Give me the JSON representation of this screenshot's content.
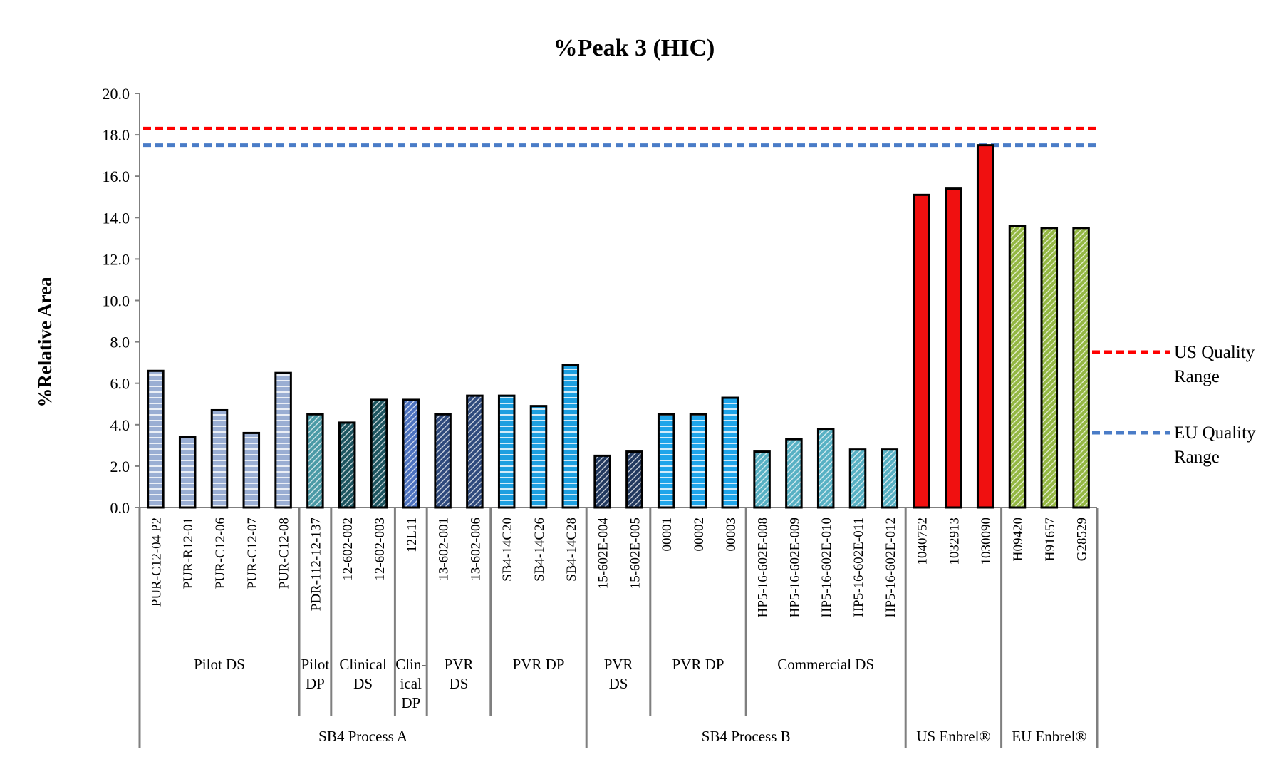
{
  "chart_data": {
    "type": "bar",
    "title": "%Peak 3 (HIC)",
    "ylabel": "%Relative Area",
    "xlabel": "",
    "ylim": [
      0,
      20
    ],
    "ytick_labels": [
      "0.0",
      "2.0",
      "4.0",
      "6.0",
      "8.0",
      "10.0",
      "12.0",
      "14.0",
      "16.0",
      "18.0",
      "20.0"
    ],
    "grid": false,
    "legend_position": "right",
    "categories": [
      "PUR-C12-04 P2",
      "PUR-R12-01",
      "PUR-C12-06",
      "PUR-C12-07",
      "PUR-C12-08",
      "PDR-112-12-137",
      "12-602-002",
      "12-602-003",
      "12L11",
      "13-602-001",
      "13-602-006",
      "SB4-14C20",
      "SB4-14C26",
      "SB4-14C28",
      "15-602E-004",
      "15-602E-005",
      "00001",
      "00002",
      "00003",
      "HP5-16-602E-008",
      "HP5-16-602E-009",
      "HP5-16-602E-010",
      "HP5-16-602E-011",
      "HP5-16-602E-012",
      "1040752",
      "1032913",
      "1030090",
      "H09420",
      "H91657",
      "G28529"
    ],
    "values": [
      6.6,
      3.4,
      4.7,
      3.6,
      6.5,
      4.5,
      4.1,
      5.2,
      5.2,
      4.5,
      5.4,
      5.4,
      4.9,
      6.9,
      2.5,
      2.7,
      4.5,
      4.5,
      5.3,
      2.7,
      3.3,
      3.8,
      2.8,
      2.8,
      15.1,
      15.4,
      17.5,
      13.6,
      13.5,
      13.5
    ],
    "bar_colors": [
      "#9aaed3",
      "#9aaed3",
      "#9aaed3",
      "#9aaed3",
      "#9aaed3",
      "#4b9aa6",
      "#1d5560",
      "#1d5560",
      "#4d72bf",
      "#2f4a7d",
      "#2f4a7d",
      "#1d9fe0",
      "#1d9fe0",
      "#1d9fe0",
      "#22395f",
      "#22395f",
      "#1fa5ea",
      "#1fa5ea",
      "#1fa5ea",
      "#58b1c4",
      "#58b1c4",
      "#58b1c4",
      "#58b1c4",
      "#58b1c4",
      "#f01010",
      "#f01010",
      "#f01010",
      "#94b843",
      "#94b843",
      "#94b843"
    ],
    "subgroups": [
      {
        "label": "Pilot DS",
        "count": 5
      },
      {
        "label": "Pilot DP",
        "count": 1
      },
      {
        "label": "Clinical DS",
        "count": 2
      },
      {
        "label": "Clin-ical DP",
        "count": 1
      },
      {
        "label": "PVR DS",
        "count": 2
      },
      {
        "label": "PVR DP",
        "count": 3
      },
      {
        "label": "PVR DS",
        "count": 2
      },
      {
        "label": "PVR DP",
        "count": 3
      },
      {
        "label": "Commercial DS",
        "count": 5
      }
    ],
    "groups": [
      {
        "label": "SB4 Process A",
        "count": 14
      },
      {
        "label": "SB4 Process B",
        "count": 10
      },
      {
        "label": "US Enbrel®",
        "count": 3
      },
      {
        "label": "EU Enbrel®",
        "count": 3
      }
    ],
    "reference_lines": [
      {
        "name": "US Quality Range",
        "value": 18.3,
        "color": "#ff0000"
      },
      {
        "name": "EU Quality Range",
        "value": 17.5,
        "color": "#4a7cc7"
      }
    ]
  }
}
